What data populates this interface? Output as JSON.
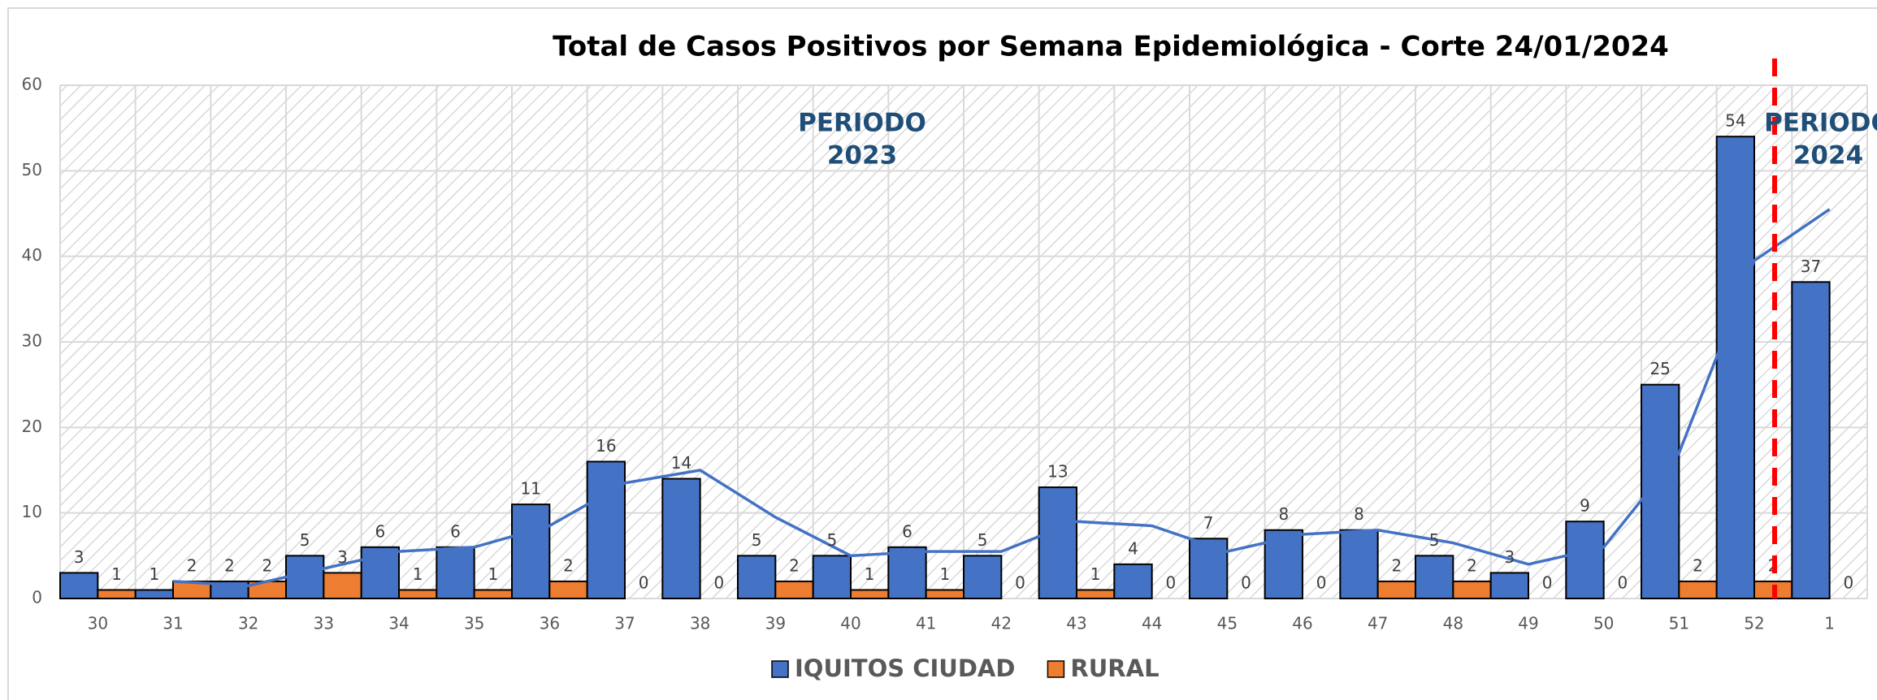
{
  "chart_data": {
    "type": "bar",
    "title": "Total de Casos Positivos por Semana Epidemiológica - Corte 24/01/2024",
    "categories": [
      "30",
      "31",
      "32",
      "33",
      "34",
      "35",
      "36",
      "37",
      "38",
      "39",
      "40",
      "41",
      "42",
      "43",
      "44",
      "45",
      "46",
      "47",
      "48",
      "49",
      "50",
      "51",
      "52",
      "1"
    ],
    "series": [
      {
        "name": "IQUITOS CIUDAD",
        "color": "#4472c4",
        "values": [
          3,
          1,
          2,
          5,
          6,
          6,
          11,
          16,
          14,
          5,
          5,
          6,
          5,
          13,
          4,
          7,
          8,
          8,
          5,
          3,
          9,
          25,
          54,
          37
        ]
      },
      {
        "name": "RURAL",
        "color": "#ed7d31",
        "values": [
          1,
          2,
          2,
          3,
          1,
          1,
          2,
          0,
          0,
          2,
          1,
          1,
          0,
          1,
          0,
          0,
          0,
          2,
          2,
          0,
          0,
          2,
          2,
          0
        ]
      }
    ],
    "trendline": {
      "color": "#4472c4",
      "values": [
        null,
        2,
        1.5,
        3.5,
        5.5,
        6,
        8.5,
        13.5,
        15,
        9.5,
        5,
        5.5,
        5.5,
        9,
        8.5,
        5.5,
        7.5,
        8,
        6.5,
        4,
        6,
        17,
        39.5,
        45.5
      ]
    },
    "annotations": [
      [
        "PERIODO",
        "2023"
      ],
      [
        "PERIODO",
        "2024"
      ]
    ],
    "ylim": [
      0,
      60
    ],
    "yticks": [
      0,
      10,
      20,
      30,
      40,
      50,
      60
    ],
    "grid": true,
    "legend": "bottom"
  }
}
